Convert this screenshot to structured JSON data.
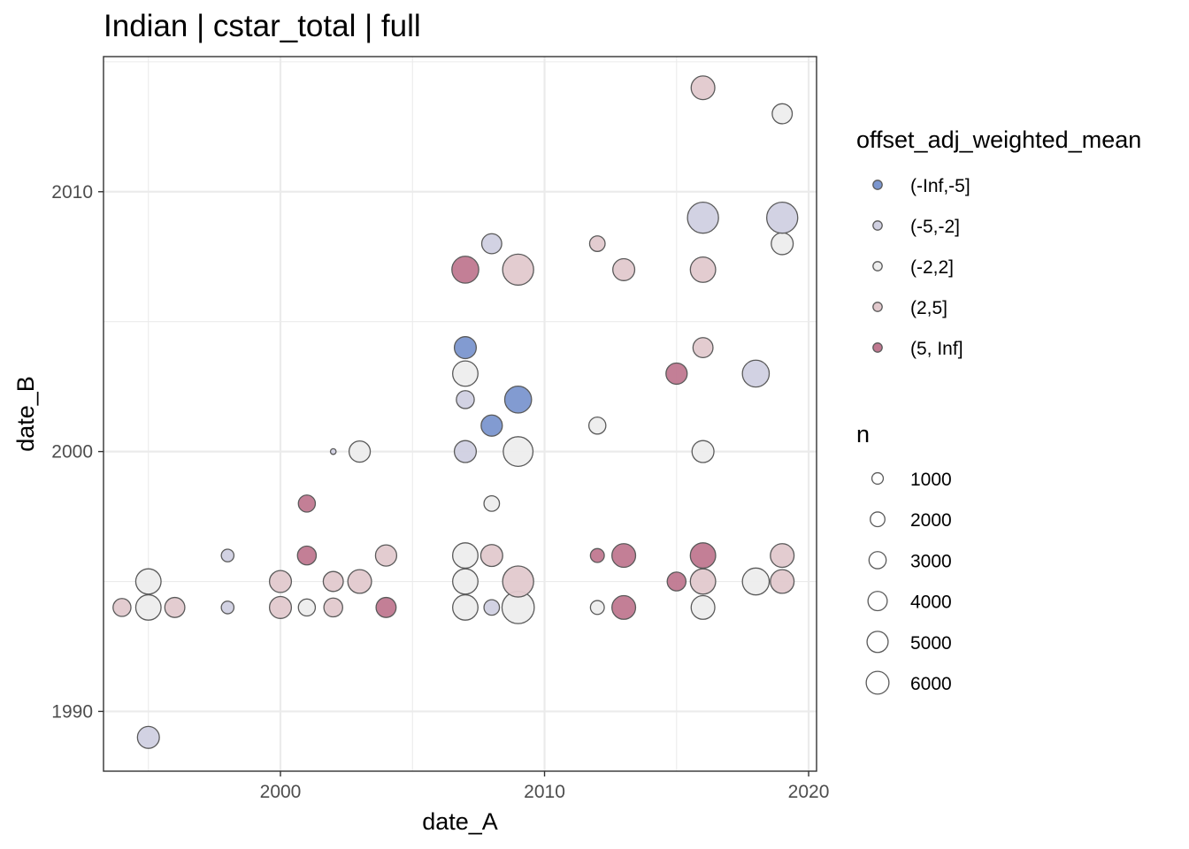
{
  "chart_data": {
    "type": "scatter",
    "title": "Indian | cstar_total | full",
    "xlabel": "date_A",
    "ylabel": "date_B",
    "xlim": [
      1993.3,
      2020.3
    ],
    "ylim": [
      1987.7,
      2015.2
    ],
    "x_ticks": [
      2000,
      2010,
      2020
    ],
    "y_ticks": [
      1990,
      2000,
      2010
    ],
    "grid": true,
    "color_legend": {
      "title": "offset_adj_weighted_mean",
      "categories": [
        "(-Inf,-5]",
        "(-5,-2]",
        "(-2,2]",
        "(2,5]",
        "(5, Inf]"
      ],
      "colors": [
        "#7b96cf",
        "#d0d0e1",
        "#ededed",
        "#e2c9cd",
        "#c07890"
      ]
    },
    "size_legend": {
      "title": "n",
      "values": [
        1000,
        2000,
        3000,
        4000,
        5000,
        6000
      ]
    },
    "points": [
      {
        "x": 1994,
        "y": 1994,
        "n": 2000,
        "cat": "(2,5]"
      },
      {
        "x": 1995,
        "y": 1994,
        "n": 4000,
        "cat": "(-2,2]"
      },
      {
        "x": 1995,
        "y": 1995,
        "n": 4000,
        "cat": "(-2,2]"
      },
      {
        "x": 1995,
        "y": 1989,
        "n": 3000,
        "cat": "(-5,-2]"
      },
      {
        "x": 1996,
        "y": 1994,
        "n": 2500,
        "cat": "(2,5]"
      },
      {
        "x": 1998,
        "y": 1994,
        "n": 1000,
        "cat": "(-5,-2]"
      },
      {
        "x": 1998,
        "y": 1996,
        "n": 1000,
        "cat": "(-5,-2]"
      },
      {
        "x": 2000,
        "y": 1994,
        "n": 3000,
        "cat": "(2,5]"
      },
      {
        "x": 2000,
        "y": 1995,
        "n": 3000,
        "cat": "(2,5]"
      },
      {
        "x": 2001,
        "y": 1994,
        "n": 1800,
        "cat": "(-2,2]"
      },
      {
        "x": 2001,
        "y": 1996,
        "n": 2200,
        "cat": "(5, Inf]"
      },
      {
        "x": 2001,
        "y": 1998,
        "n": 1800,
        "cat": "(5, Inf]"
      },
      {
        "x": 2002,
        "y": 1994,
        "n": 2200,
        "cat": "(2,5]"
      },
      {
        "x": 2002,
        "y": 1995,
        "n": 2500,
        "cat": "(2,5]"
      },
      {
        "x": 2002,
        "y": 2000,
        "n": 200,
        "cat": "(-5,-2]"
      },
      {
        "x": 2003,
        "y": 1995,
        "n": 3500,
        "cat": "(2,5]"
      },
      {
        "x": 2003,
        "y": 2000,
        "n": 2800,
        "cat": "(-2,2]"
      },
      {
        "x": 2004,
        "y": 1994,
        "n": 2500,
        "cat": "(5, Inf]"
      },
      {
        "x": 2004,
        "y": 1996,
        "n": 2800,
        "cat": "(2,5]"
      },
      {
        "x": 2007,
        "y": 1994,
        "n": 4000,
        "cat": "(-2,2]"
      },
      {
        "x": 2007,
        "y": 1995,
        "n": 4000,
        "cat": "(-2,2]"
      },
      {
        "x": 2007,
        "y": 1996,
        "n": 4000,
        "cat": "(-2,2]"
      },
      {
        "x": 2007,
        "y": 2000,
        "n": 3000,
        "cat": "(-5,-2]"
      },
      {
        "x": 2007,
        "y": 2002,
        "n": 2000,
        "cat": "(-5,-2]"
      },
      {
        "x": 2007,
        "y": 2003,
        "n": 4000,
        "cat": "(-2,2]"
      },
      {
        "x": 2007,
        "y": 2004,
        "n": 3000,
        "cat": "(-Inf,-5]"
      },
      {
        "x": 2007,
        "y": 2007,
        "n": 4500,
        "cat": "(5, Inf]"
      },
      {
        "x": 2008,
        "y": 1994,
        "n": 1500,
        "cat": "(-5,-2]"
      },
      {
        "x": 2008,
        "y": 1996,
        "n": 3000,
        "cat": "(2,5]"
      },
      {
        "x": 2008,
        "y": 1998,
        "n": 1500,
        "cat": "(-2,2]"
      },
      {
        "x": 2008,
        "y": 2001,
        "n": 2800,
        "cat": "(-Inf,-5]"
      },
      {
        "x": 2008,
        "y": 2008,
        "n": 2500,
        "cat": "(-5,-2]"
      },
      {
        "x": 2009,
        "y": 1994,
        "n": 6500,
        "cat": "(-2,2]"
      },
      {
        "x": 2009,
        "y": 1995,
        "n": 6000,
        "cat": "(2,5]"
      },
      {
        "x": 2009,
        "y": 2000,
        "n": 5500,
        "cat": "(-2,2]"
      },
      {
        "x": 2009,
        "y": 2002,
        "n": 4500,
        "cat": "(-Inf,-5]"
      },
      {
        "x": 2009,
        "y": 2007,
        "n": 6000,
        "cat": "(2,5]"
      },
      {
        "x": 2012,
        "y": 1994,
        "n": 1200,
        "cat": "(-2,2]"
      },
      {
        "x": 2012,
        "y": 1996,
        "n": 1200,
        "cat": "(5, Inf]"
      },
      {
        "x": 2012,
        "y": 2001,
        "n": 1800,
        "cat": "(-2,2]"
      },
      {
        "x": 2012,
        "y": 2008,
        "n": 1500,
        "cat": "(2,5]"
      },
      {
        "x": 2013,
        "y": 1994,
        "n": 3500,
        "cat": "(5, Inf]"
      },
      {
        "x": 2013,
        "y": 1996,
        "n": 3500,
        "cat": "(5, Inf]"
      },
      {
        "x": 2013,
        "y": 2007,
        "n": 3000,
        "cat": "(2,5]"
      },
      {
        "x": 2015,
        "y": 1995,
        "n": 2200,
        "cat": "(5, Inf]"
      },
      {
        "x": 2015,
        "y": 2003,
        "n": 2800,
        "cat": "(5, Inf]"
      },
      {
        "x": 2016,
        "y": 1994,
        "n": 3500,
        "cat": "(-2,2]"
      },
      {
        "x": 2016,
        "y": 1995,
        "n": 4000,
        "cat": "(2,5]"
      },
      {
        "x": 2016,
        "y": 1996,
        "n": 4000,
        "cat": "(5, Inf]"
      },
      {
        "x": 2016,
        "y": 2000,
        "n": 3000,
        "cat": "(-2,2]"
      },
      {
        "x": 2016,
        "y": 2004,
        "n": 2500,
        "cat": "(2,5]"
      },
      {
        "x": 2016,
        "y": 2007,
        "n": 4000,
        "cat": "(2,5]"
      },
      {
        "x": 2016,
        "y": 2009,
        "n": 6000,
        "cat": "(-5,-2]"
      },
      {
        "x": 2016,
        "y": 2014,
        "n": 3500,
        "cat": "(2,5]"
      },
      {
        "x": 2018,
        "y": 1995,
        "n": 4500,
        "cat": "(-2,2]"
      },
      {
        "x": 2018,
        "y": 2003,
        "n": 4500,
        "cat": "(-5,-2]"
      },
      {
        "x": 2019,
        "y": 1995,
        "n": 3500,
        "cat": "(2,5]"
      },
      {
        "x": 2019,
        "y": 1996,
        "n": 3500,
        "cat": "(2,5]"
      },
      {
        "x": 2019,
        "y": 2008,
        "n": 3000,
        "cat": "(-2,2]"
      },
      {
        "x": 2019,
        "y": 2009,
        "n": 6000,
        "cat": "(-5,-2]"
      },
      {
        "x": 2019,
        "y": 2013,
        "n": 2500,
        "cat": "(-2,2]"
      }
    ]
  }
}
